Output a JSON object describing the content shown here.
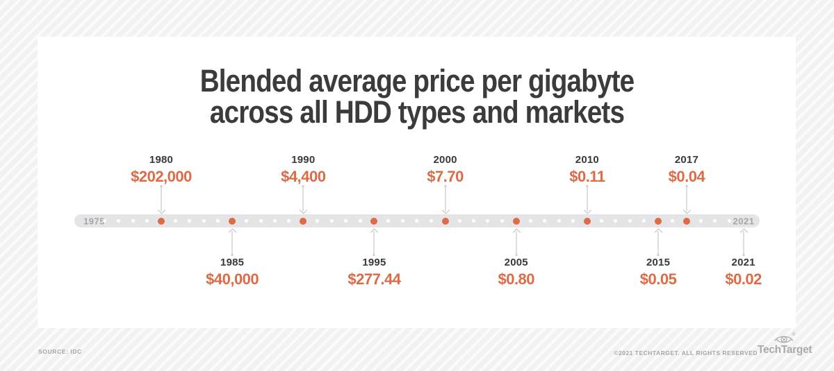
{
  "title": {
    "line1": "Blended average price per gigabyte",
    "line2": "across all HDD types and markets"
  },
  "timeline": {
    "start_label": "1975",
    "end_label": "2021",
    "above": [
      {
        "year": "1980",
        "price": "$202,000"
      },
      {
        "year": "1990",
        "price": "$4,400"
      },
      {
        "year": "2000",
        "price": "$7.70"
      },
      {
        "year": "2010",
        "price": "$0.11"
      },
      {
        "year": "2017",
        "price": "$0.04"
      }
    ],
    "below": [
      {
        "year": "1985",
        "price": "$40,000"
      },
      {
        "year": "1995",
        "price": "$277.44"
      },
      {
        "year": "2005",
        "price": "$0.80"
      },
      {
        "year": "2015",
        "price": "$0.05"
      },
      {
        "year": "2021",
        "price": "$0.02"
      }
    ]
  },
  "footer": {
    "source": "SOURCE: IDC",
    "copyright": "©2021 TECHTARGET. ALL RIGHTS RESERVED",
    "brand": "TechTarget"
  },
  "colors": {
    "accent_orange": "#dd6b46",
    "title_gray": "#3b3b3d",
    "bar_gray": "#e5e5e7",
    "muted_gray": "#a5a5a7"
  },
  "chart_data": {
    "type": "scatter",
    "title": "Blended average price per gigabyte across all HDD types and markets",
    "x": [
      1980,
      1985,
      1990,
      1995,
      2000,
      2005,
      2010,
      2015,
      2017,
      2021
    ],
    "values": [
      202000,
      40000,
      4400,
      277.44,
      7.7,
      0.8,
      0.11,
      0.05,
      0.04,
      0.02
    ],
    "value_labels": [
      "$202,000",
      "$40,000",
      "$4,400",
      "$277.44",
      "$7.70",
      "$0.80",
      "$0.11",
      "$0.05",
      "$0.04",
      "$0.02"
    ],
    "xlabel": "",
    "ylabel": "",
    "x_range": [
      1975,
      2021
    ],
    "units": "USD per gigabyte (from title)",
    "legend": false,
    "layout": "horizontal timeline bar with one small tick dot per year; milestone years shown as orange dots; year+price annotations alternate above and below the bar with thin arrows"
  }
}
